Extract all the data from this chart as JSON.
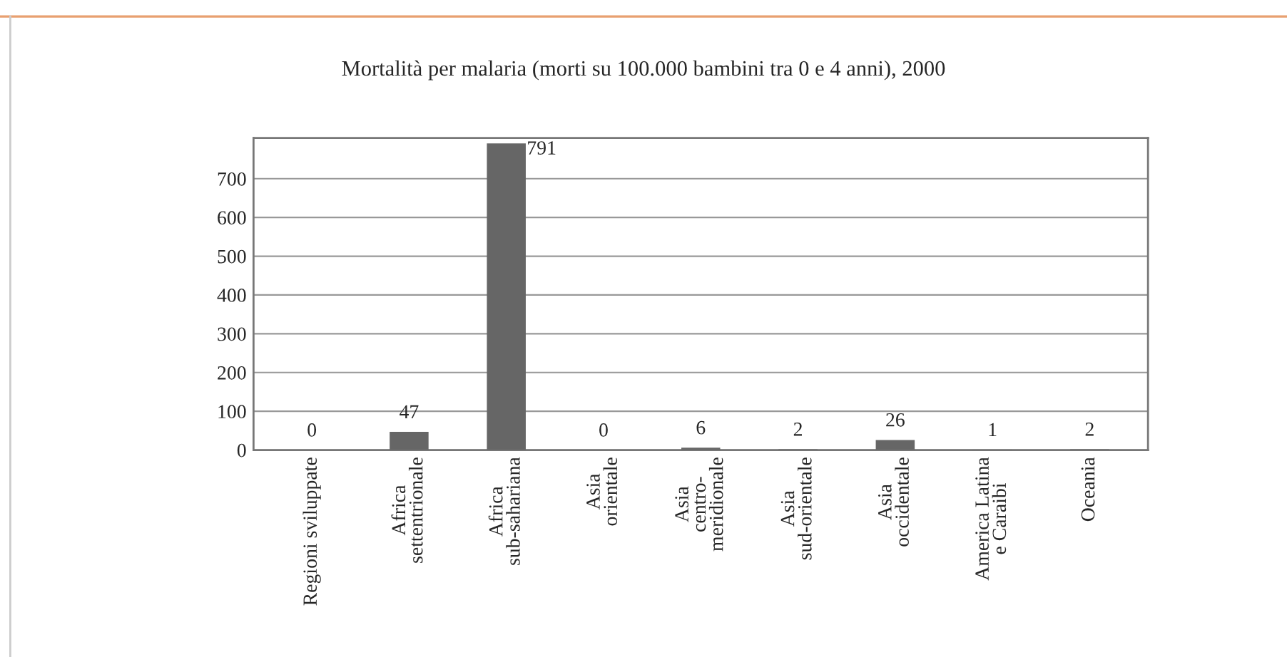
{
  "chart_data": {
    "type": "bar",
    "title": "Mortalità per malaria (morti su 100.000 bambini tra 0 e 4 anni), 2000",
    "categories": [
      "Regioni sviluppate",
      "Africa\nsettentrionale",
      "Africa\nsub-sahariana",
      "Asia\norientale",
      "Asia\ncentro-\nmeridionale",
      "Asia\nsud-orientale",
      "Asia\noccidentale",
      "America Latina\ne Caraibi",
      "Oceania"
    ],
    "values": [
      0,
      47,
      791,
      0,
      6,
      2,
      26,
      1,
      2
    ],
    "color": "#666666",
    "ylim": [
      0,
      805
    ],
    "yticks": [
      0,
      100,
      200,
      300,
      400,
      500,
      600,
      700
    ],
    "grid": "y",
    "data_labels": true
  }
}
